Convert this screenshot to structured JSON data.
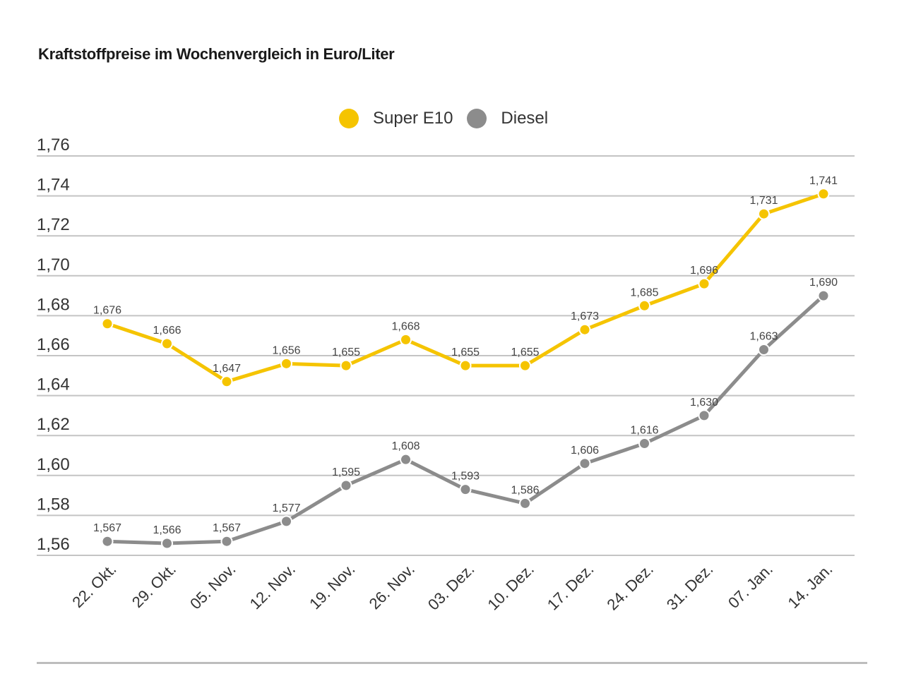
{
  "chart_data": {
    "type": "line",
    "title": "Kraftstoffpreise im Wochenvergleich in Euro/Liter",
    "xlabel": "",
    "ylabel": "",
    "ylim": [
      1.56,
      1.76
    ],
    "yticks": [
      "1,76",
      "1,74",
      "1,72",
      "1,70",
      "1,68",
      "1,66",
      "1,64",
      "1,62",
      "1,60",
      "1,58",
      "1,56"
    ],
    "ytick_values": [
      1.76,
      1.74,
      1.72,
      1.7,
      1.68,
      1.66,
      1.64,
      1.62,
      1.6,
      1.58,
      1.56
    ],
    "grid": true,
    "legend_position": "top-center",
    "categories": [
      "22. Okt.",
      "29. Okt.",
      "05. Nov.",
      "12. Nov.",
      "19. Nov.",
      "26. Nov.",
      "03. Dez.",
      "10. Dez.",
      "17. Dez.",
      "24. Dez.",
      "31. Dez.",
      "07. Jan.",
      "14. Jan."
    ],
    "series": [
      {
        "name": "Super E10",
        "color": "#F5C400",
        "values": [
          1.676,
          1.666,
          1.647,
          1.656,
          1.655,
          1.668,
          1.655,
          1.655,
          1.673,
          1.685,
          1.696,
          1.731,
          1.741
        ],
        "labels": [
          "1,676",
          "1,666",
          "1,647",
          "1,656",
          "1,655",
          "1,668",
          "1,655",
          "1,655",
          "1,673",
          "1,685",
          "1,696",
          "1,731",
          "1,741"
        ]
      },
      {
        "name": "Diesel",
        "color": "#8C8C8C",
        "values": [
          1.567,
          1.566,
          1.567,
          1.577,
          1.595,
          1.608,
          1.593,
          1.586,
          1.606,
          1.616,
          1.63,
          1.663,
          1.69
        ],
        "labels": [
          "1,567",
          "1,566",
          "1,567",
          "1,577",
          "1,595",
          "1,608",
          "1,593",
          "1,586",
          "1,606",
          "1,616",
          "1,630",
          "1,663",
          "1,690"
        ]
      }
    ]
  }
}
